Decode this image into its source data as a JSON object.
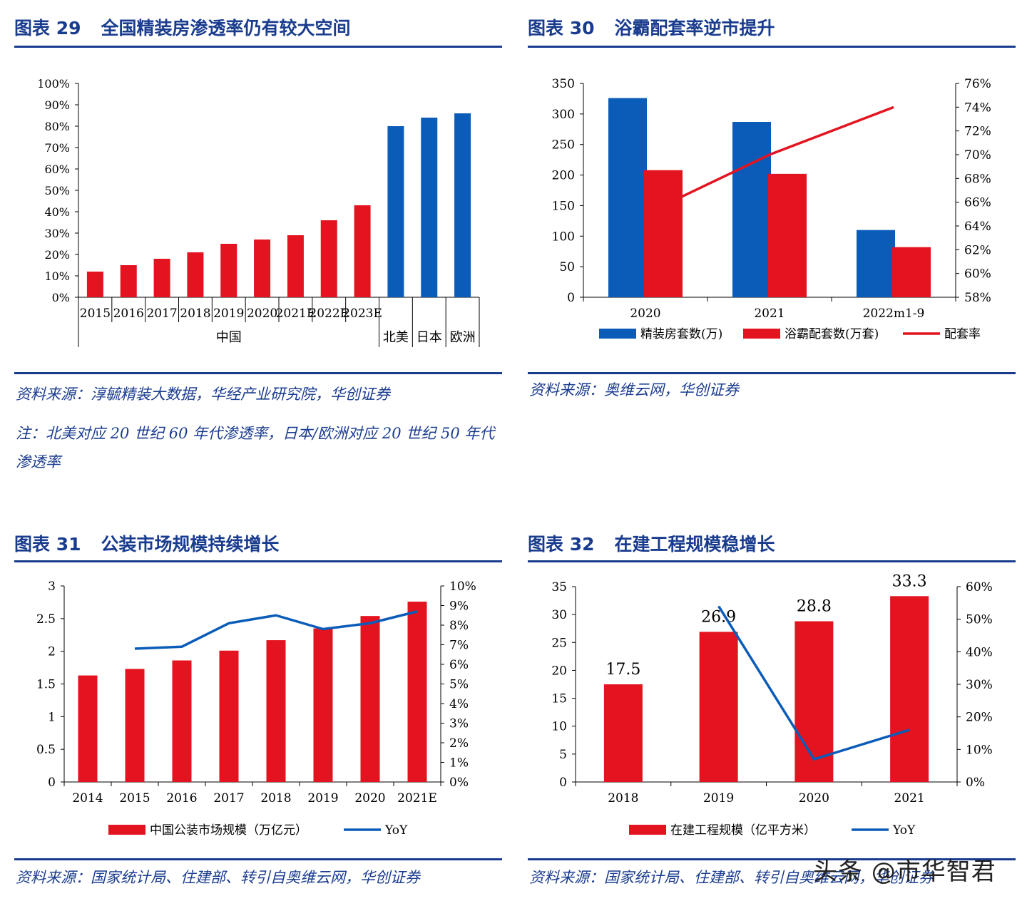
{
  "panels": {
    "p29": {
      "title_num": "图表 29",
      "title_text": "全国精装房渗透率仍有较大空间",
      "source": "资料来源：淳毓精装大数据，华经产业研究院，华创证券",
      "note": "注：北美对应 20 世纪 60 年代渗透率，日本/欧洲对应 20 世纪 50 年代渗透率"
    },
    "p30": {
      "title_num": "图表 30",
      "title_text": "浴霸配套率逆市提升",
      "source": "资料来源：奥维云网，华创证券"
    },
    "p31": {
      "title_num": "图表 31",
      "title_text": "公装市场规模持续增长",
      "source": "资料来源：国家统计局、住建部、转引自奥维云网，华创证券"
    },
    "p32": {
      "title_num": "图表 32",
      "title_text": "在建工程规模稳增长",
      "source": "资料来源：国家统计局、住建部、转引自奥维云网，华创证券"
    }
  },
  "watermark": "头条 @市华智君",
  "colors": {
    "blue": "#0b5cb8",
    "red": "#e3141f",
    "title": "#1a3c8f"
  },
  "chart_data": [
    {
      "id": "c29",
      "type": "bar",
      "title": "全国精装房渗透率仍有较大空间",
      "categories": [
        "2015",
        "2016",
        "2017",
        "2018",
        "2019",
        "2020",
        "2021E",
        "2022E",
        "2023E",
        "北美",
        "日本",
        "欧洲"
      ],
      "values": [
        12,
        15,
        18,
        21,
        25,
        27,
        29,
        36,
        43,
        80,
        84,
        86
      ],
      "bar_colors": [
        "red",
        "red",
        "red",
        "red",
        "red",
        "red",
        "red",
        "red",
        "red",
        "blue",
        "blue",
        "blue"
      ],
      "group_labels": [
        "中国",
        "北美",
        "日本",
        "欧洲"
      ],
      "yticks": [
        "0%",
        "10%",
        "20%",
        "30%",
        "40%",
        "50%",
        "60%",
        "70%",
        "80%",
        "90%",
        "100%"
      ],
      "ylim": [
        0,
        100
      ]
    },
    {
      "id": "c30",
      "type": "bar",
      "title": "浴霸配套率逆市提升",
      "categories": [
        "2020",
        "2021",
        "2022m1-9"
      ],
      "series": [
        {
          "name": "精装房套数(万)",
          "values": [
            326,
            287,
            110
          ],
          "color": "blue"
        },
        {
          "name": "浴霸配套数(万套)",
          "values": [
            208,
            202,
            82
          ],
          "color": "red"
        },
        {
          "name": "配套率",
          "values": [
            65.0,
            70.0,
            74.0
          ],
          "color": "red",
          "type": "line",
          "axis": "right"
        }
      ],
      "yticks_left": [
        "0",
        "50",
        "100",
        "150",
        "200",
        "250",
        "300",
        "350"
      ],
      "ylim_left": [
        0,
        350
      ],
      "yticks_right": [
        "58%",
        "60%",
        "62%",
        "64%",
        "66%",
        "68%",
        "70%",
        "72%",
        "74%",
        "76%"
      ],
      "ylim_right": [
        58,
        76
      ]
    },
    {
      "id": "c31",
      "type": "bar",
      "title": "公装市场规模持续增长",
      "categories": [
        "2014",
        "2015",
        "2016",
        "2017",
        "2018",
        "2019",
        "2020",
        "2021E"
      ],
      "series": [
        {
          "name": "中国公装市场规模（万亿元）",
          "values": [
            1.63,
            1.73,
            1.86,
            2.01,
            2.17,
            2.35,
            2.54,
            2.76
          ],
          "color": "red"
        },
        {
          "name": "YoY",
          "values": [
            null,
            6.8,
            6.9,
            8.1,
            8.5,
            7.8,
            8.1,
            8.7
          ],
          "color": "blue",
          "type": "line",
          "axis": "right"
        }
      ],
      "yticks_left": [
        "0",
        "0.5",
        "1",
        "1.5",
        "2",
        "2.5",
        "3"
      ],
      "ylim_left": [
        0,
        3
      ],
      "yticks_right": [
        "0%",
        "1%",
        "2%",
        "3%",
        "4%",
        "5%",
        "6%",
        "7%",
        "8%",
        "9%",
        "10%"
      ],
      "ylim_right": [
        0,
        10
      ]
    },
    {
      "id": "c32",
      "type": "bar",
      "title": "在建工程规模稳增长",
      "categories": [
        "2018",
        "2019",
        "2020",
        "2021"
      ],
      "series": [
        {
          "name": "在建工程规模（亿平方米）",
          "values": [
            17.5,
            26.9,
            28.8,
            33.3
          ],
          "labels": [
            "17.5",
            "26.9",
            "28.8",
            "33.3"
          ],
          "color": "red"
        },
        {
          "name": "YoY",
          "values": [
            null,
            54,
            7,
            16
          ],
          "color": "blue",
          "type": "line",
          "axis": "right"
        }
      ],
      "yticks_left": [
        "0",
        "5",
        "10",
        "15",
        "20",
        "25",
        "30",
        "35"
      ],
      "ylim_left": [
        0,
        35
      ],
      "yticks_right": [
        "0%",
        "10%",
        "20%",
        "30%",
        "40%",
        "50%",
        "60%"
      ],
      "ylim_right": [
        0,
        60
      ]
    }
  ]
}
